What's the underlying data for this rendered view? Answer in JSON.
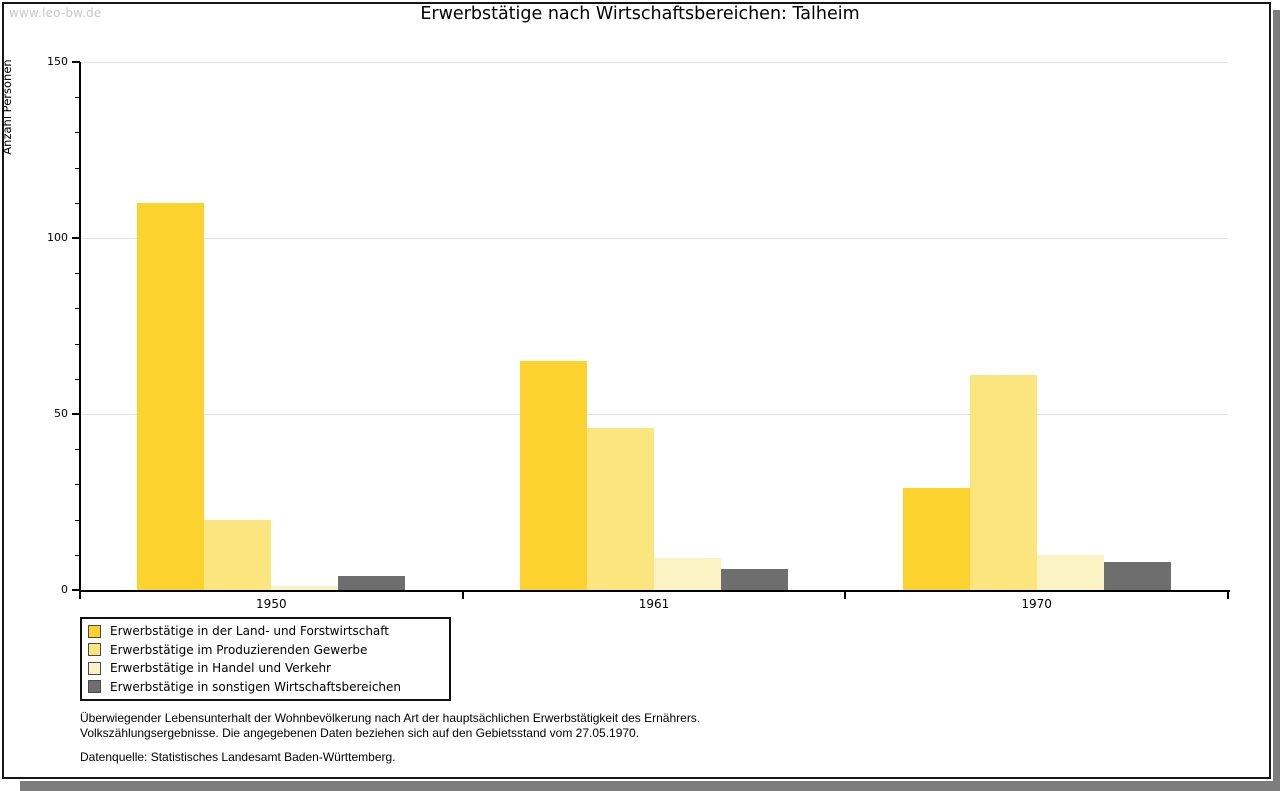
{
  "watermark": "www.leo-bw.de",
  "header": {
    "title": "Erwerbstätige nach Wirtschaftsbereichen: Talheim"
  },
  "chart_data": {
    "type": "bar",
    "title": "Erwerbstätige nach Wirtschaftsbereichen: Talheim",
    "xlabel": "",
    "ylabel": "Anzahl Personen",
    "categories": [
      "1950",
      "1961",
      "1970"
    ],
    "series": [
      {
        "name": "Erwerbstätige in der Land- und Forstwirtschaft",
        "color": "#FCD22F",
        "values": [
          110,
          65,
          29
        ]
      },
      {
        "name": "Erwerbstätige im Produzierenden Gewerbe",
        "color": "#FAE57E",
        "values": [
          20,
          46,
          61
        ]
      },
      {
        "name": "Erwerbstätige in Handel und Verkehr",
        "color": "#FBF3C3",
        "values": [
          1,
          9,
          10
        ]
      },
      {
        "name": "Erwerbstätige in sonstigen Wirtschaftsbereichen",
        "color": "#6E6E6E",
        "values": [
          4,
          6,
          8
        ]
      }
    ],
    "ylim": [
      0,
      150
    ],
    "ytick_major_step": 50,
    "ytick_minor_step": 10,
    "ytick_labels": [
      "0",
      "50",
      "100",
      "150"
    ],
    "grid": true,
    "legend_position": "bottom-left"
  },
  "footnotes": {
    "line1": "Überwiegender Lebensunterhalt der Wohnbevölkerung nach Art der hauptsächlichen Erwerbstätigkeit des Ernährers.",
    "line2": "Volkszählungsergebnisse. Die angegebenen Daten beziehen sich auf den Gebietsstand vom 27.05.1970.",
    "source": "Datenquelle: Statistisches Landesamt Baden-Württemberg."
  },
  "colors": {
    "series1": "#FCD22F",
    "series2": "#FAE57E",
    "series3": "#FBF3C3",
    "series4": "#6E6E6E",
    "gridline": "#e3e3e3",
    "axis": "#000000",
    "watermark": "#c8c8c8",
    "frame_shadow": "#7d7d7d"
  }
}
